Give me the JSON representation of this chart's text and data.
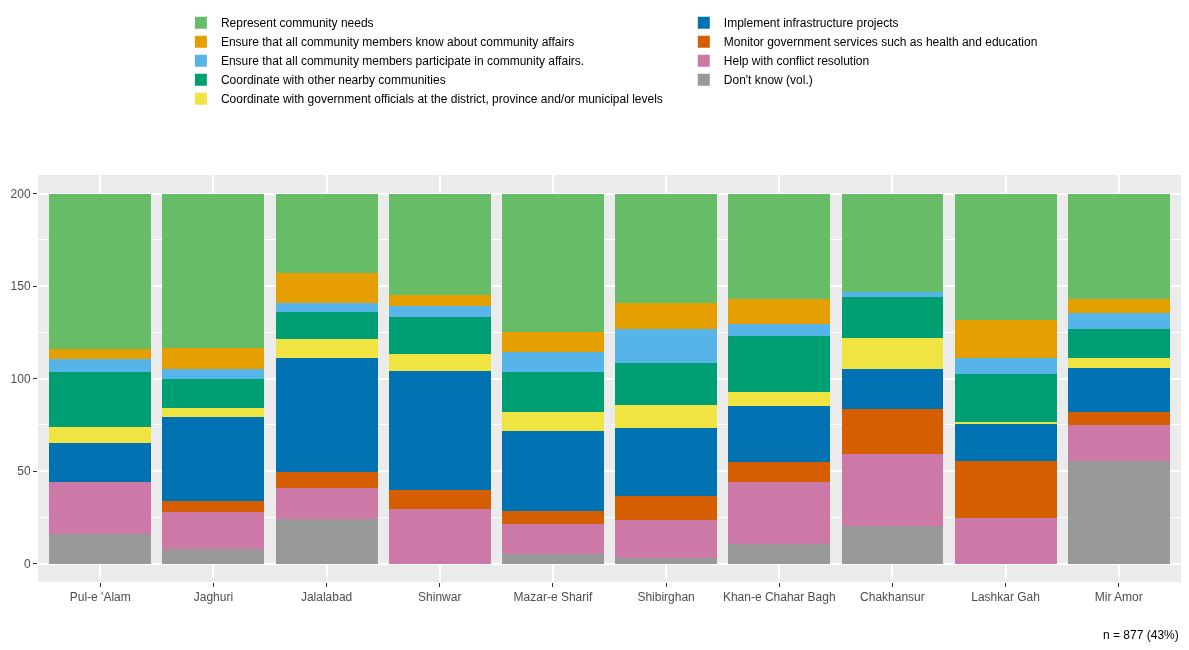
{
  "chart_data": {
    "type": "bar",
    "stacked": true,
    "categories": [
      "Pul-e 'Alam",
      "Jaghuri",
      "Jalalabad",
      "Shinwar",
      "Mazar-e Sharif",
      "Shibirghan",
      "Khan-e Chahar Bagh",
      "Chakhansur",
      "Lashkar Gah",
      "Mir Amor"
    ],
    "series": [
      {
        "name": "Don't know (vol.)",
        "color": "#999999",
        "values": [
          16,
          8,
          24,
          0,
          5,
          3,
          10.5,
          20.5,
          null,
          55.5
        ]
      },
      {
        "name": "Help with conflict resolution",
        "color": "#cc79a7",
        "values": [
          28,
          20,
          17,
          29.5,
          16.5,
          20.5,
          33.5,
          38.5,
          24.5,
          19.5
        ]
      },
      {
        "name": "Monitor government services such as health and education",
        "color": "#d55e00",
        "values": [
          0,
          6,
          8.5,
          10,
          7,
          13,
          11,
          24.5,
          31,
          7
        ]
      },
      {
        "name": "Implement infrastructure projects",
        "color": "#0072b2",
        "values": [
          21,
          45,
          61.5,
          64.5,
          43,
          36.5,
          30,
          21.5,
          20,
          23.5
        ]
      },
      {
        "name": "Coordinate with government officials at the district, province and/or municipal levels",
        "color": "#f0e442",
        "values": [
          9,
          5,
          10.5,
          9,
          10.5,
          12.5,
          7.5,
          17,
          1,
          5.5
        ]
      },
      {
        "name": "Coordinate with other nearby communities",
        "color": "#009e73",
        "values": [
          29.5,
          16,
          14.5,
          20,
          21.5,
          23,
          30.5,
          22,
          26,
          16
        ]
      },
      {
        "name": "Ensure that all community members participate in community affairs.",
        "color": "#56b4e9",
        "values": [
          7,
          5,
          5,
          6,
          11,
          18,
          6.5,
          2.5,
          8.5,
          8.5
        ]
      },
      {
        "name": "Ensure that all community members know about community affairs",
        "color": "#e69f00",
        "values": [
          5.5,
          11.5,
          16,
          6,
          10.5,
          14.5,
          13.5,
          0,
          20.5,
          7.5
        ]
      },
      {
        "name": "Represent community needs",
        "color": "#67bd67",
        "values": [
          84,
          83.5,
          43,
          55,
          75,
          59,
          57,
          53.5,
          68,
          57
        ]
      }
    ],
    "ylim": [
      -10,
      210
    ],
    "yticks": [
      0,
      50,
      100,
      150,
      200
    ],
    "grid": true,
    "legend": "top",
    "annotations": [
      "n = 877 (43%)"
    ]
  }
}
